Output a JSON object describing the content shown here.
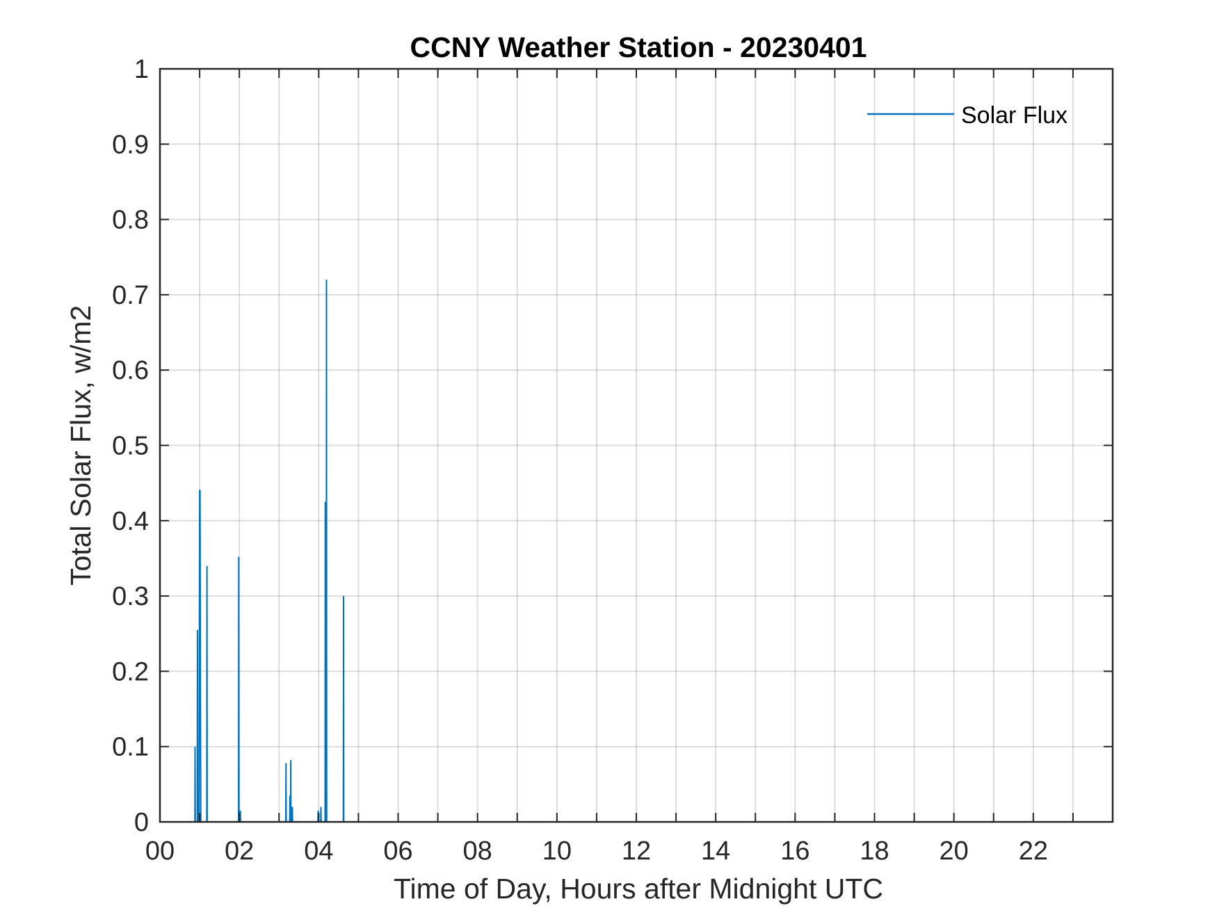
{
  "chart_data": {
    "type": "line",
    "title": "CCNY Weather Station - 20230401",
    "xlabel": "Time of Day, Hours after Midnight UTC",
    "ylabel": "Total Solar Flux, w/m2",
    "xlim": [
      0,
      24
    ],
    "ylim": [
      0,
      1
    ],
    "x_ticks": [
      0,
      2,
      4,
      6,
      8,
      10,
      12,
      14,
      16,
      18,
      20,
      22
    ],
    "x_tick_labels": [
      "00",
      "02",
      "04",
      "06",
      "08",
      "10",
      "12",
      "14",
      "16",
      "18",
      "20",
      "22"
    ],
    "y_ticks": [
      0,
      0.1,
      0.2,
      0.3,
      0.4,
      0.5,
      0.6,
      0.7,
      0.8,
      0.9,
      1
    ],
    "y_tick_labels": [
      "0",
      "0.1",
      "0.2",
      "0.3",
      "0.4",
      "0.5",
      "0.6",
      "0.7",
      "0.8",
      "0.9",
      "1"
    ],
    "grid": true,
    "legend_position": "top-right",
    "series": [
      {
        "name": "Solar Flux",
        "color": "#0072bd",
        "x": [
          0,
          0.88,
          0.885,
          0.89,
          0.94,
          0.945,
          0.95,
          0.98,
          0.985,
          1.0,
          1.01,
          1.02,
          1.03,
          1.04,
          1.18,
          1.185,
          1.19,
          1.98,
          1.985,
          1.99,
          2.02,
          2.025,
          2.03,
          3.17,
          3.175,
          3.18,
          3.27,
          3.275,
          3.28,
          3.29,
          3.295,
          3.3,
          3.33,
          3.335,
          3.34,
          3.98,
          3.985,
          3.99,
          4.05,
          4.055,
          4.06,
          4.16,
          4.165,
          4.17,
          4.19,
          4.195,
          4.2,
          4.62,
          4.625,
          4.63,
          24
        ],
        "y": [
          0,
          0,
          0.1,
          0,
          0,
          0.255,
          0,
          0,
          0.015,
          0.44,
          0.44,
          0.16,
          0,
          0,
          0,
          0.34,
          0,
          0,
          0.352,
          0,
          0,
          0.015,
          0,
          0,
          0.078,
          0,
          0,
          0.035,
          0,
          0,
          0.082,
          0,
          0,
          0.02,
          0,
          0,
          0.015,
          0,
          0,
          0.02,
          0,
          0,
          0.425,
          0,
          0,
          0.72,
          0,
          0,
          0.3,
          0,
          0
        ]
      }
    ]
  }
}
